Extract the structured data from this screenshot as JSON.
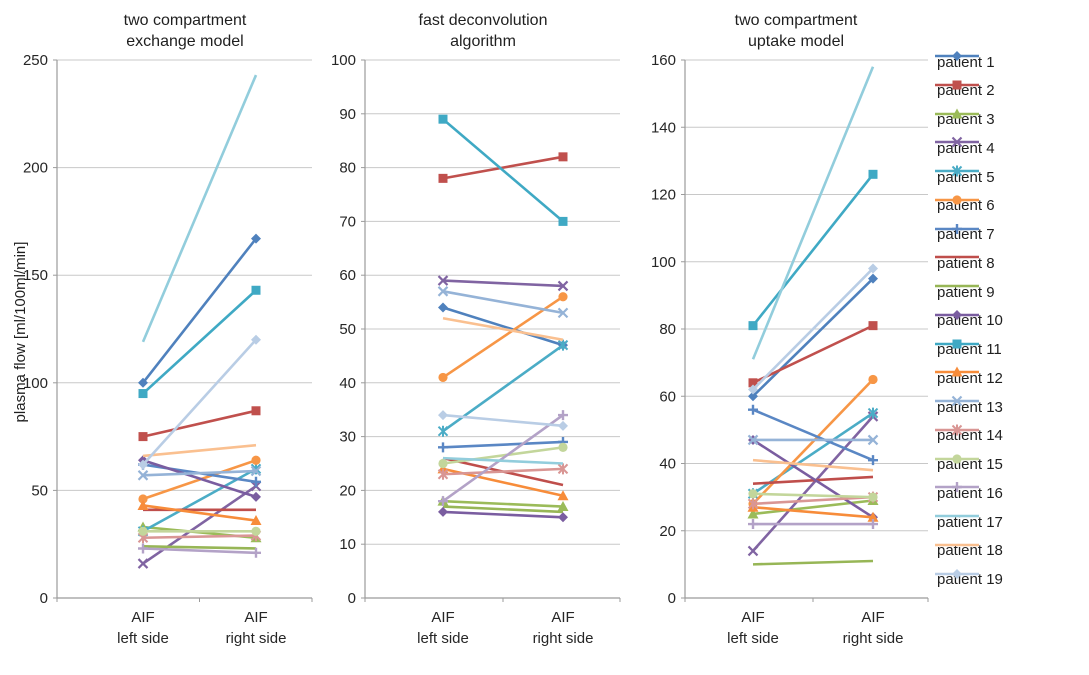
{
  "figure": {
    "ylabel": "plasma flow [ml/100ml/min]"
  },
  "patients": [
    {
      "name": "patient 1",
      "color": "#4F81BD",
      "marker": "diamond"
    },
    {
      "name": "patient 2",
      "color": "#C0504D",
      "marker": "square"
    },
    {
      "name": "patient 3",
      "color": "#9BBB59",
      "marker": "triangle"
    },
    {
      "name": "patient 4",
      "color": "#8064A2",
      "marker": "x"
    },
    {
      "name": "patient 5",
      "color": "#4BACC6",
      "marker": "star"
    },
    {
      "name": "patient 6",
      "color": "#F79646",
      "marker": "circle"
    },
    {
      "name": "patient 7",
      "color": "#5A87C4",
      "marker": "plus"
    },
    {
      "name": "patient 8",
      "color": "#BF4E4B",
      "marker": "none"
    },
    {
      "name": "patient 9",
      "color": "#97B656",
      "marker": "none"
    },
    {
      "name": "patient 10",
      "color": "#7A5DA0",
      "marker": "diamond"
    },
    {
      "name": "patient 11",
      "color": "#3FA9C4",
      "marker": "square"
    },
    {
      "name": "patient 12",
      "color": "#F78C3A",
      "marker": "triangle"
    },
    {
      "name": "patient 13",
      "color": "#95B3D7",
      "marker": "x"
    },
    {
      "name": "patient 14",
      "color": "#D99694",
      "marker": "star"
    },
    {
      "name": "patient 15",
      "color": "#C3D69B",
      "marker": "circle"
    },
    {
      "name": "patient 16",
      "color": "#B3A2C7",
      "marker": "plus"
    },
    {
      "name": "patient 17",
      "color": "#92CDDC",
      "marker": "none"
    },
    {
      "name": "patient 18",
      "color": "#FAC090",
      "marker": "none"
    },
    {
      "name": "patient 19",
      "color": "#B9CDE5",
      "marker": "diamond"
    }
  ],
  "chart_data": [
    {
      "type": "line",
      "title": "two compartment\nexchange model",
      "ylabel": "plasma flow [ml/100ml/min]",
      "categories": [
        "AIF left side",
        "AIF right side"
      ],
      "ylim": [
        0,
        250
      ],
      "ystep": 50,
      "grid": true,
      "legend_position": "right",
      "series": [
        {
          "name": "patient 1",
          "values": [
            100,
            167
          ]
        },
        {
          "name": "patient 2",
          "values": [
            75,
            87
          ]
        },
        {
          "name": "patient 3",
          "values": [
            33,
            28
          ]
        },
        {
          "name": "patient 4",
          "values": [
            16,
            52
          ]
        },
        {
          "name": "patient 5",
          "values": [
            31,
            60
          ]
        },
        {
          "name": "patient 6",
          "values": [
            46,
            64
          ]
        },
        {
          "name": "patient 7",
          "values": [
            62,
            54
          ]
        },
        {
          "name": "patient 8",
          "values": [
            41,
            41
          ]
        },
        {
          "name": "patient 9",
          "values": [
            24,
            23
          ]
        },
        {
          "name": "patient 10",
          "values": [
            64,
            47
          ]
        },
        {
          "name": "patient 11",
          "values": [
            95,
            143
          ]
        },
        {
          "name": "patient 12",
          "values": [
            43,
            36
          ]
        },
        {
          "name": "patient 13",
          "values": [
            57,
            59
          ]
        },
        {
          "name": "patient 14",
          "values": [
            28,
            29
          ]
        },
        {
          "name": "patient 15",
          "values": [
            31,
            31
          ]
        },
        {
          "name": "patient 16",
          "values": [
            23,
            21
          ]
        },
        {
          "name": "patient 17",
          "values": [
            119,
            243
          ]
        },
        {
          "name": "patient 18",
          "values": [
            66,
            71
          ]
        },
        {
          "name": "patient 19",
          "values": [
            62,
            120
          ]
        }
      ]
    },
    {
      "type": "line",
      "title": "fast deconvolution\nalgorithm",
      "categories": [
        "AIF left side",
        "AIF right side"
      ],
      "ylim": [
        0,
        100
      ],
      "ystep": 10,
      "grid": true,
      "series": [
        {
          "name": "patient 1",
          "values": [
            54,
            47
          ]
        },
        {
          "name": "patient 2",
          "values": [
            78,
            82
          ]
        },
        {
          "name": "patient 3",
          "values": [
            18,
            17
          ]
        },
        {
          "name": "patient 4",
          "values": [
            59,
            58
          ]
        },
        {
          "name": "patient 5",
          "values": [
            31,
            47
          ]
        },
        {
          "name": "patient 6",
          "values": [
            41,
            56
          ]
        },
        {
          "name": "patient 7",
          "values": [
            28,
            29
          ]
        },
        {
          "name": "patient 8",
          "values": [
            26,
            21
          ]
        },
        {
          "name": "patient 9",
          "values": [
            17,
            16
          ]
        },
        {
          "name": "patient 10",
          "values": [
            16,
            15
          ]
        },
        {
          "name": "patient 11",
          "values": [
            89,
            70
          ]
        },
        {
          "name": "patient 12",
          "values": [
            24,
            19
          ]
        },
        {
          "name": "patient 13",
          "values": [
            57,
            53
          ]
        },
        {
          "name": "patient 14",
          "values": [
            23,
            24
          ]
        },
        {
          "name": "patient 15",
          "values": [
            25,
            28
          ]
        },
        {
          "name": "patient 16",
          "values": [
            18,
            34
          ]
        },
        {
          "name": "patient 17",
          "values": [
            26,
            25
          ]
        },
        {
          "name": "patient 18",
          "values": [
            52,
            48
          ]
        },
        {
          "name": "patient 19",
          "values": [
            34,
            32
          ]
        }
      ]
    },
    {
      "type": "line",
      "title": "two compartment\nuptake model",
      "categories": [
        "AIF left side",
        "AIF right side"
      ],
      "ylim": [
        0,
        160
      ],
      "ystep": 20,
      "grid": true,
      "series": [
        {
          "name": "patient 1",
          "values": [
            60,
            95
          ]
        },
        {
          "name": "patient 2",
          "values": [
            64,
            81
          ]
        },
        {
          "name": "patient 3",
          "values": [
            25,
            29
          ]
        },
        {
          "name": "patient 4",
          "values": [
            14,
            54
          ]
        },
        {
          "name": "patient 5",
          "values": [
            31,
            55
          ]
        },
        {
          "name": "patient 6",
          "values": [
            28,
            65
          ]
        },
        {
          "name": "patient 7",
          "values": [
            56,
            41
          ]
        },
        {
          "name": "patient 8",
          "values": [
            34,
            36
          ]
        },
        {
          "name": "patient 9",
          "values": [
            10,
            11
          ]
        },
        {
          "name": "patient 10",
          "values": [
            47,
            24
          ]
        },
        {
          "name": "patient 11",
          "values": [
            81,
            126
          ]
        },
        {
          "name": "patient 12",
          "values": [
            27,
            24
          ]
        },
        {
          "name": "patient 13",
          "values": [
            47,
            47
          ]
        },
        {
          "name": "patient 14",
          "values": [
            28,
            30
          ]
        },
        {
          "name": "patient 15",
          "values": [
            31,
            30
          ]
        },
        {
          "name": "patient 16",
          "values": [
            22,
            22
          ]
        },
        {
          "name": "patient 17",
          "values": [
            71,
            158
          ]
        },
        {
          "name": "patient 18",
          "values": [
            41,
            38
          ]
        },
        {
          "name": "patient 19",
          "values": [
            62,
            98
          ]
        }
      ]
    }
  ]
}
